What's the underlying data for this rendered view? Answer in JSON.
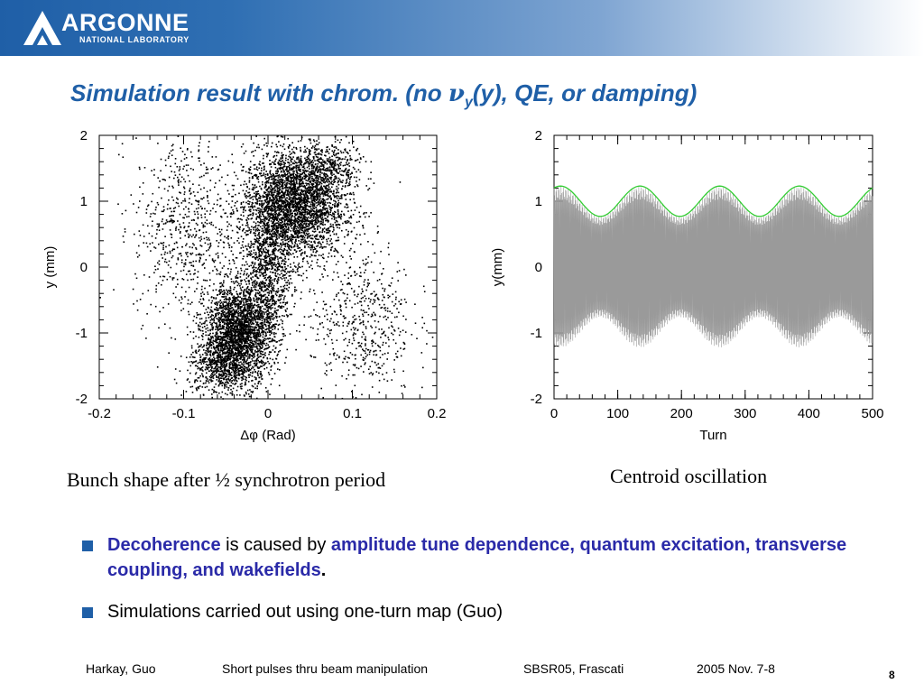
{
  "header": {
    "logo_word": "ARGONNE",
    "logo_sub": "NATIONAL LABORATORY"
  },
  "title": {
    "prefix": "Simulation result with chrom. (no ",
    "nu": "ν",
    "sub": "y",
    "suffix": "(y), QE, or damping)"
  },
  "colors": {
    "accent": "#1f5fa7",
    "highlight": "#2a2aa8",
    "envelope": "#33cc33",
    "oscillation": "#9a9a9a"
  },
  "chart_data": [
    {
      "type": "scatter",
      "xlabel": "Δφ (Rad)",
      "ylabel": "y (mm)",
      "xlim": [
        -0.2,
        0.2
      ],
      "ylim": [
        -2,
        2
      ],
      "xticks": [
        "-0.2",
        "-0.1",
        "0",
        "0.1",
        "0.2"
      ],
      "yticks": [
        "-2",
        "-1",
        "0",
        "1",
        "2"
      ],
      "clusters": [
        {
          "x": 0.03,
          "y": 0.95,
          "sx": 0.03,
          "sy": 0.42,
          "n": 3200
        },
        {
          "x": -0.035,
          "y": -1.0,
          "sx": 0.02,
          "sy": 0.38,
          "n": 2600
        },
        {
          "x": 0.0,
          "y": 0.0,
          "sx": 0.014,
          "sy": 0.55,
          "n": 900
        },
        {
          "x": -0.1,
          "y": 0.6,
          "sx": 0.03,
          "sy": 0.7,
          "n": 650
        },
        {
          "x": 0.11,
          "y": -0.8,
          "sx": 0.03,
          "sy": 0.6,
          "n": 550
        },
        {
          "x": -0.06,
          "y": -1.5,
          "sx": 0.018,
          "sy": 0.22,
          "n": 500
        },
        {
          "x": 0.07,
          "y": 1.5,
          "sx": 0.02,
          "sy": 0.22,
          "n": 400
        }
      ],
      "caption": "Bunch shape after ½ synchrotron period"
    },
    {
      "type": "line",
      "xlabel": "Turn",
      "ylabel": "y(mm)",
      "xlim": [
        0,
        500
      ],
      "ylim": [
        -2,
        2
      ],
      "xticks": [
        "0",
        "100",
        "200",
        "300",
        "400",
        "500"
      ],
      "yticks": [
        "-2",
        "-1",
        "0",
        "1",
        "2"
      ],
      "series": [
        {
          "role": "oscillation",
          "mean_amplitude_mm": 0.99,
          "modulation_mm": 0.23,
          "modulation_period_turns": 125,
          "envelope_peak_turn": 10
        },
        {
          "role": "envelope",
          "mean_amplitude_mm": 1.0,
          "modulation_mm": 0.23,
          "modulation_period_turns": 125,
          "envelope_peak_turn": 10
        }
      ],
      "caption": "Centroid oscillation"
    }
  ],
  "bullets": [
    {
      "term": "Decoherence",
      "text": " is caused by ",
      "emph": "amplitude tune dependence, quantum excitation, transverse coupling, and wakefields",
      "end": "."
    },
    {
      "text": "Simulations carried out using one-turn map (Guo)"
    }
  ],
  "footer": {
    "authors": "Harkay, Guo",
    "topic": "Short pulses thru beam manipulation",
    "venue": "SBSR05, Frascati",
    "date": "2005 Nov. 7-8",
    "page": "8"
  }
}
